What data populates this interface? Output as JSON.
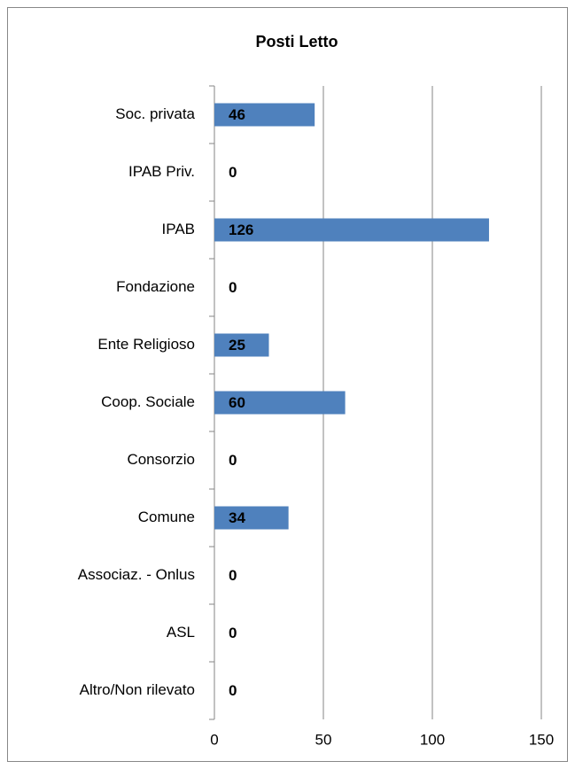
{
  "chart_data": {
    "type": "bar",
    "orientation": "horizontal",
    "title": "Posti Letto",
    "categories": [
      "Soc. privata",
      "IPAB Priv.",
      "IPAB",
      "Fondazione",
      "Ente Religioso",
      "Coop. Sociale",
      "Consorzio",
      "Comune",
      "Associaz. - Onlus",
      "ASL",
      "Altro/Non rilevato"
    ],
    "values": [
      46,
      0,
      126,
      0,
      25,
      60,
      0,
      34,
      0,
      0,
      0
    ],
    "color": "#4f81bd",
    "xlim": [
      0,
      150
    ],
    "xticks": [
      0,
      50,
      100,
      150
    ],
    "grid": true
  }
}
